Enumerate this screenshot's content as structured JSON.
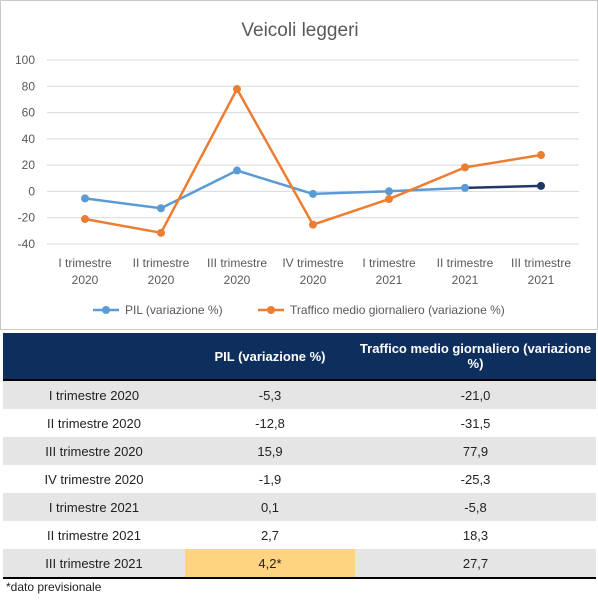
{
  "chart_data": {
    "type": "line",
    "title": "Veicoli leggeri",
    "categories": [
      [
        "I trimestre",
        "2020"
      ],
      [
        "II trimestre",
        "2020"
      ],
      [
        "III trimestre",
        "2020"
      ],
      [
        "IV trimestre",
        "2020"
      ],
      [
        "I trimestre",
        "2021"
      ],
      [
        "II trimestre",
        "2021"
      ],
      [
        "III trimestre",
        "2021"
      ]
    ],
    "ylim": [
      -40,
      100
    ],
    "yticks": [
      -40,
      -20,
      0,
      20,
      40,
      60,
      80,
      100
    ],
    "grid": true,
    "legend_position": "bottom",
    "series": [
      {
        "name": "PIL (variazione %)",
        "values": [
          -5.3,
          -12.8,
          15.9,
          -1.9,
          0.1,
          2.7,
          4.2
        ],
        "color": "#5b9bd5",
        "forecast_color": "#203864"
      },
      {
        "name": "Traffico medio giornaliero (variazione %)",
        "values": [
          -21.0,
          -31.5,
          77.9,
          -25.3,
          -5.8,
          18.3,
          27.7
        ],
        "color": "#ed7d31"
      }
    ]
  },
  "table": {
    "headers": [
      "",
      "PIL (variazione %)",
      "Traffico medio giornaliero (variazione %)"
    ],
    "rows": [
      [
        "I trimestre 2020",
        "-5,3",
        "-21,0"
      ],
      [
        "II trimestre 2020",
        "-12,8",
        "-31,5"
      ],
      [
        "III trimestre 2020",
        "15,9",
        "77,9"
      ],
      [
        "IV trimestre 2020",
        "-1,9",
        "-25,3"
      ],
      [
        "I trimestre 2021",
        "0,1",
        "-5,8"
      ],
      [
        "II trimestre 2021",
        "2,7",
        "18,3"
      ],
      [
        "III trimestre 2021",
        "4,2*",
        "27,7"
      ]
    ],
    "highlight_color": "#ffd37f"
  },
  "footnote": "*dato previsionale"
}
